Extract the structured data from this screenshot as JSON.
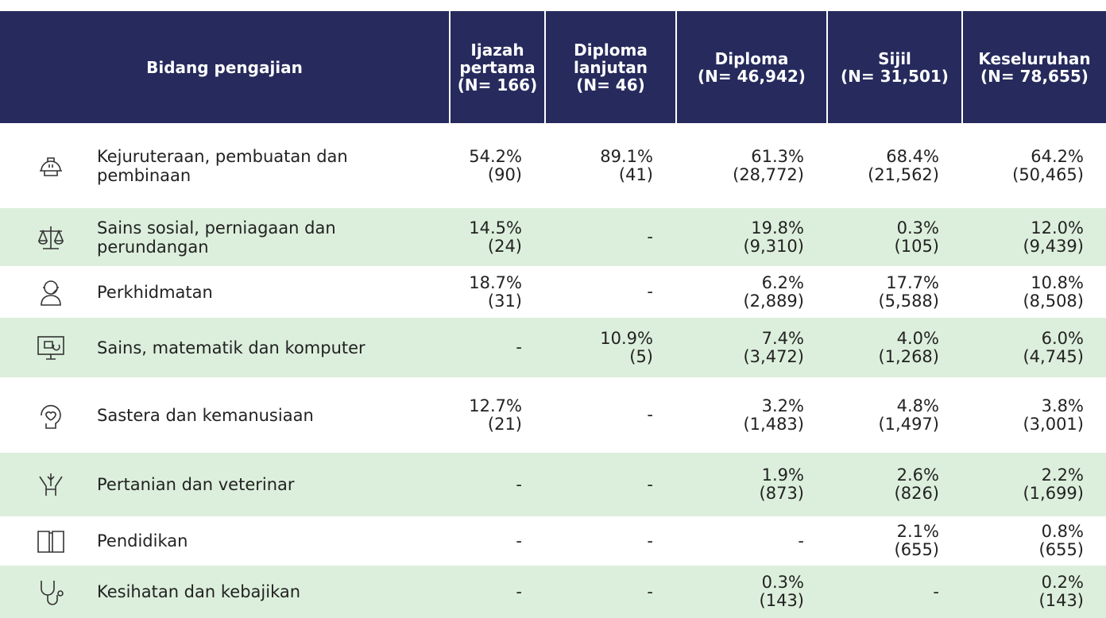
{
  "table": {
    "header": {
      "label": "Bidang pengajian",
      "columns": [
        [
          "Ijazah",
          "pertama",
          "(N= 166)"
        ],
        [
          "Diploma",
          "lanjutan",
          "(N= 46)"
        ],
        [
          "Diploma",
          "(N= 46,942)"
        ],
        [
          "Sijil",
          "(N= 31,501)"
        ],
        [
          "Keseluruhan",
          "(N= 78,655)"
        ]
      ]
    },
    "rows": [
      {
        "label": "Kejuruteraan, pembuatan dan pembinaan",
        "values": [
          [
            "54.2%",
            "(90)"
          ],
          [
            "89.1%",
            "(41)"
          ],
          [
            "61.3%",
            "(28,772)"
          ],
          [
            "68.4%",
            "(21,562)"
          ],
          [
            "64.2%",
            "(50,465)"
          ]
        ]
      },
      {
        "label": "Sains sosial, perniagaan dan perundangan",
        "values": [
          [
            "14.5%",
            "(24)"
          ],
          "-",
          [
            "19.8%",
            "(9,310)"
          ],
          [
            "0.3%",
            "(105)"
          ],
          [
            "12.0%",
            "(9,439)"
          ]
        ]
      },
      {
        "label": "Perkhidmatan",
        "values": [
          [
            "18.7%",
            "(31)"
          ],
          "-",
          [
            "6.2%",
            "(2,889)"
          ],
          [
            "17.7%",
            "(5,588)"
          ],
          [
            "10.8%",
            "(8,508)"
          ]
        ]
      },
      {
        "label": "Sains, matematik dan komputer",
        "values": [
          "-",
          [
            "10.9%",
            "(5)"
          ],
          [
            "7.4%",
            "(3,472)"
          ],
          [
            "4.0%",
            "(1,268)"
          ],
          [
            "6.0%",
            "(4,745)"
          ]
        ]
      },
      {
        "label": "Sastera dan kemanusiaan",
        "values": [
          [
            "12.7%",
            "(21)"
          ],
          "-",
          [
            "3.2%",
            "(1,483)"
          ],
          [
            "4.8%",
            "(1,497)"
          ],
          [
            "3.8%",
            "(3,001)"
          ]
        ]
      },
      {
        "label": "Pertanian dan veterinar",
        "values": [
          "-",
          "-",
          [
            "1.9%",
            "(873)"
          ],
          [
            "2.6%",
            "(826)"
          ],
          [
            "2.2%",
            "(1,699)"
          ]
        ]
      },
      {
        "label": "Pendidikan",
        "values": [
          "-",
          "-",
          "-",
          [
            "2.1%",
            "(655)"
          ],
          [
            "0.8%",
            "(655)"
          ]
        ]
      },
      {
        "label": "Kesihatan dan kebajikan",
        "values": [
          "-",
          "-",
          [
            "0.3%",
            "(143)"
          ],
          "-",
          [
            "0.2%",
            "(143)"
          ]
        ]
      }
    ]
  }
}
